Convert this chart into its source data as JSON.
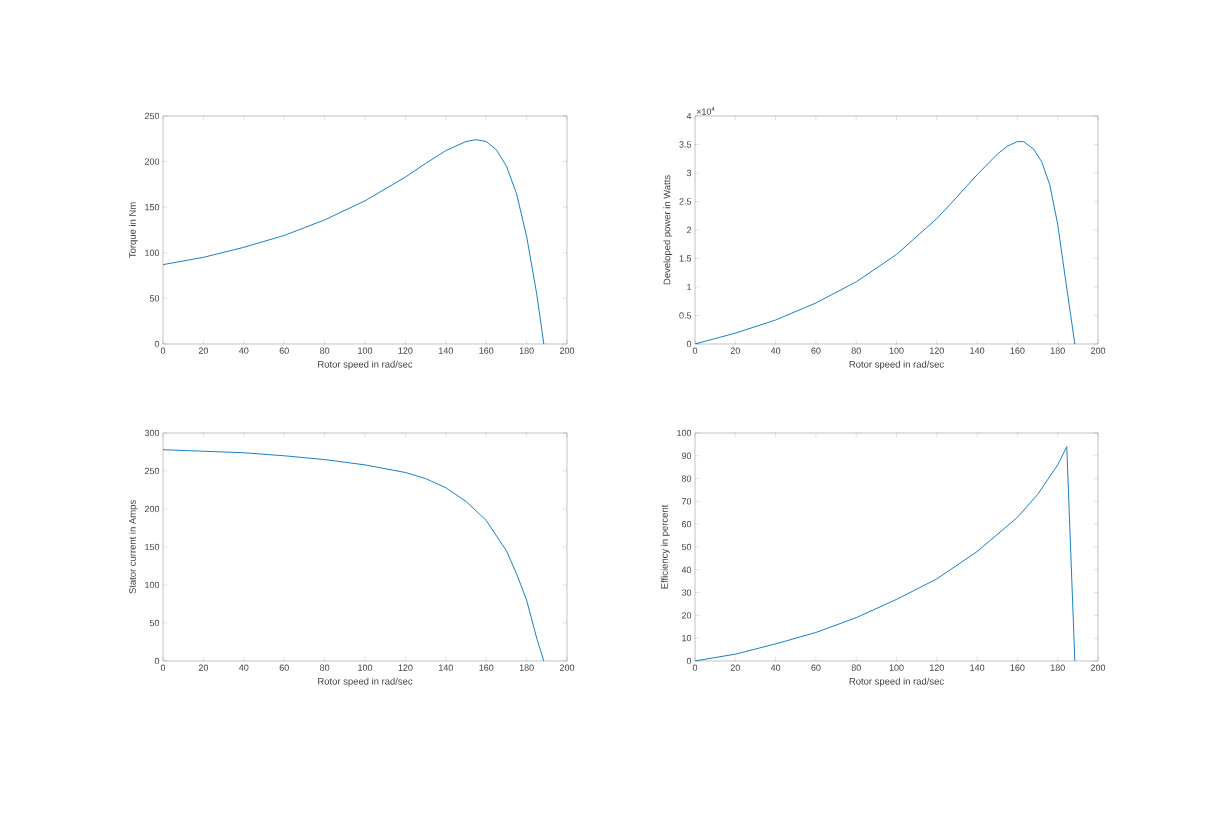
{
  "chart_data": [
    {
      "type": "line",
      "xlabel": "Rotor speed in rad/sec",
      "ylabel": "Torque in Nm",
      "color": "#0072bd",
      "x": [
        0,
        20,
        40,
        60,
        80,
        100,
        120,
        130,
        140,
        150,
        155,
        160,
        165,
        170,
        175,
        180,
        185,
        188.5
      ],
      "values": [
        87,
        95,
        106,
        119,
        136,
        157,
        183,
        198,
        212,
        222,
        224,
        222,
        213,
        195,
        165,
        118,
        55,
        0
      ],
      "xlim": [
        0,
        200
      ],
      "ylim": [
        0,
        250
      ],
      "xticks": [
        0,
        20,
        40,
        60,
        80,
        100,
        120,
        140,
        160,
        180,
        200
      ],
      "yticks": [
        0,
        50,
        100,
        150,
        200,
        250
      ]
    },
    {
      "type": "line",
      "xlabel": "Rotor speed in rad/sec",
      "ylabel": "Developed power in Watts",
      "color": "#0072bd",
      "annotations": [
        "×10$^{4}$"
      ],
      "x": [
        0,
        20,
        40,
        60,
        80,
        100,
        120,
        130,
        140,
        150,
        155,
        160,
        163,
        168,
        172,
        176,
        180,
        184,
        188.5
      ],
      "values": [
        0,
        0.19,
        0.42,
        0.72,
        1.09,
        1.57,
        2.2,
        2.58,
        2.97,
        3.33,
        3.47,
        3.55,
        3.55,
        3.42,
        3.2,
        2.8,
        2.1,
        1.1,
        0
      ],
      "xlim": [
        0,
        200
      ],
      "ylim": [
        0,
        4
      ],
      "xticks": [
        0,
        20,
        40,
        60,
        80,
        100,
        120,
        140,
        160,
        180,
        200
      ],
      "yticks": [
        0,
        0.5,
        1,
        1.5,
        2,
        2.5,
        3,
        3.5,
        4
      ]
    },
    {
      "type": "line",
      "xlabel": "Rotor speed in rad/sec",
      "ylabel": "Stator current in Amps",
      "color": "#0072bd",
      "x": [
        0,
        20,
        40,
        60,
        80,
        100,
        120,
        130,
        140,
        150,
        160,
        170,
        175,
        180,
        185,
        188.5
      ],
      "values": [
        278,
        276,
        274,
        270,
        265,
        258,
        248,
        240,
        228,
        210,
        185,
        145,
        115,
        80,
        30,
        0
      ],
      "xlim": [
        0,
        200
      ],
      "ylim": [
        0,
        300
      ],
      "xticks": [
        0,
        20,
        40,
        60,
        80,
        100,
        120,
        140,
        160,
        180,
        200
      ],
      "yticks": [
        0,
        50,
        100,
        150,
        200,
        250,
        300
      ]
    },
    {
      "type": "line",
      "xlabel": "Rotor speed in rad/sec",
      "ylabel": "Efficiency in percent",
      "color": "#0072bd",
      "x": [
        0,
        20,
        40,
        60,
        80,
        100,
        120,
        140,
        160,
        170,
        180,
        184.5,
        188.5
      ],
      "values": [
        0,
        3,
        7.5,
        12.5,
        19,
        27,
        36,
        48,
        63,
        73,
        86,
        94,
        0
      ],
      "xlim": [
        0,
        200
      ],
      "ylim": [
        0,
        100
      ],
      "xticks": [
        0,
        20,
        40,
        60,
        80,
        100,
        120,
        140,
        160,
        180,
        200
      ],
      "yticks": [
        0,
        10,
        20,
        30,
        40,
        50,
        60,
        70,
        80,
        90,
        100
      ]
    }
  ]
}
